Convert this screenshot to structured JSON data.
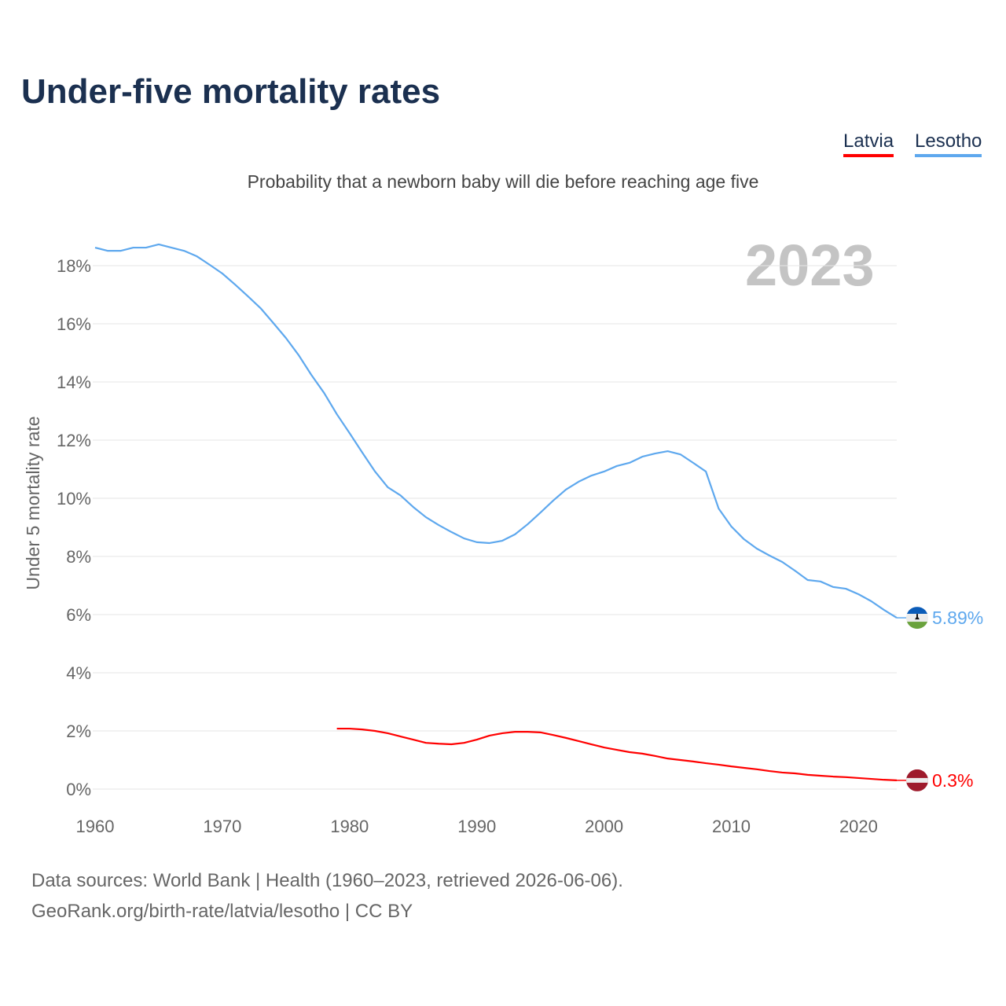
{
  "title": "Under-five mortality rates",
  "subtitle": "Probability that a newborn baby will die before reaching age five",
  "year_label": "2023",
  "legend": [
    {
      "label": "Latvia",
      "color": "#ff0000"
    },
    {
      "label": "Lesotho",
      "color": "#5ea8ee"
    }
  ],
  "footer": {
    "line1": "Data sources: World Bank | Health (1960–2023, retrieved 2026-06-06).",
    "line2": "GeoRank.org/birth-rate/latvia/lesotho | CC BY"
  },
  "chart_data": {
    "type": "line",
    "title": "Under-five mortality rates",
    "ylabel": "Under 5 mortality rate",
    "xlabel": "",
    "xlim": [
      1960,
      2023
    ],
    "ylim": [
      0,
      18
    ],
    "xticks": [
      "1960",
      "1970",
      "1980",
      "1990",
      "2000",
      "2010",
      "2020"
    ],
    "yticks": [
      "0%",
      "2%",
      "4%",
      "6%",
      "8%",
      "10%",
      "12%",
      "14%",
      "16%",
      "18%"
    ],
    "grid": true,
    "series": [
      {
        "name": "Lesotho",
        "color": "#5ea8ee",
        "start_year": 1960,
        "end_label": "5.89%",
        "flag": "lesotho-flag",
        "values": [
          18.62,
          18.51,
          18.51,
          18.62,
          18.62,
          18.73,
          18.62,
          18.51,
          18.32,
          18.03,
          17.73,
          17.35,
          16.95,
          16.54,
          16.03,
          15.51,
          14.92,
          14.24,
          13.62,
          12.89,
          12.24,
          11.57,
          10.92,
          10.38,
          10.1,
          9.7,
          9.35,
          9.08,
          8.84,
          8.62,
          8.49,
          8.46,
          8.54,
          8.76,
          9.11,
          9.51,
          9.92,
          10.3,
          10.57,
          10.78,
          10.92,
          11.11,
          11.22,
          11.43,
          11.54,
          11.62,
          11.51,
          11.22,
          10.92,
          9.65,
          9.03,
          8.59,
          8.27,
          8.03,
          7.81,
          7.51,
          7.19,
          7.14,
          6.95,
          6.89,
          6.7,
          6.46,
          6.16,
          5.89
        ]
      },
      {
        "name": "Latvia",
        "color": "#ff0000",
        "start_year": 1979,
        "end_label": "0.3%",
        "flag": "latvia-flag",
        "values": [
          2.08,
          2.08,
          2.05,
          2.0,
          1.92,
          1.81,
          1.7,
          1.59,
          1.56,
          1.54,
          1.59,
          1.7,
          1.84,
          1.92,
          1.97,
          1.97,
          1.95,
          1.86,
          1.76,
          1.65,
          1.54,
          1.43,
          1.35,
          1.27,
          1.22,
          1.14,
          1.05,
          1.0,
          0.95,
          0.89,
          0.84,
          0.78,
          0.73,
          0.68,
          0.62,
          0.57,
          0.54,
          0.49,
          0.46,
          0.43,
          0.41,
          0.38,
          0.35,
          0.32,
          0.3
        ]
      }
    ]
  }
}
